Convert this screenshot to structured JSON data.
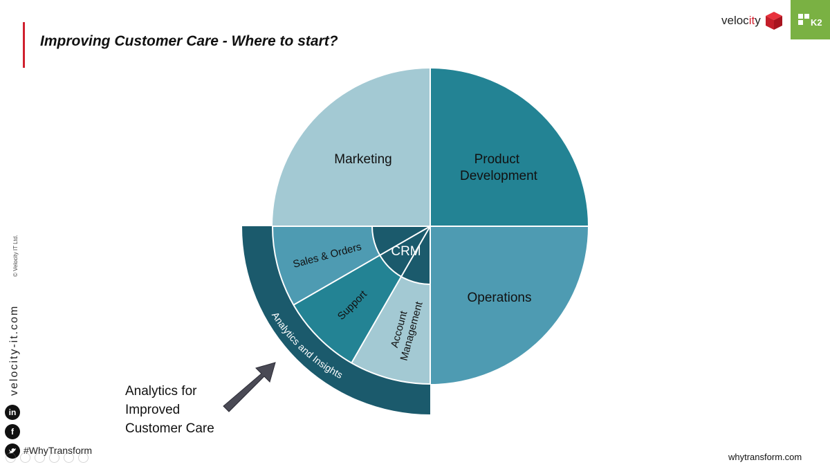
{
  "header": {
    "title": "Improving Customer Care - Where to start?",
    "velocity_logo_text": "velocity",
    "k2_logo_text": "K2"
  },
  "sidebar": {
    "copyright": "© Velocity IT Ltd.",
    "website": "velocity-it.com",
    "hashtag": "#WhyTransform",
    "social_icons": [
      "linkedin-icon",
      "facebook-icon",
      "twitter-icon"
    ]
  },
  "diagram": {
    "quadrants": {
      "marketing": "Marketing",
      "product_development": [
        "Product",
        "Development"
      ],
      "operations": "Operations"
    },
    "inner": {
      "crm": "CRM",
      "sales_orders": "Sales & Orders",
      "support": "Support",
      "account_management": [
        "Account",
        "Management"
      ]
    },
    "outer_ring": "Analytics and Insights",
    "colors": {
      "marketing": "#a3c9d3",
      "product_development": "#238394",
      "operations": "#4e9bb2",
      "outer_ring": "#1b5a6c",
      "crm": "#1b5a6c",
      "sales_orders": "#4e9bb2",
      "support": "#238394",
      "account_management": "#a3c9d3",
      "arrow": "#4a4a55"
    }
  },
  "callout": {
    "lines": [
      "Analytics for",
      "Improved",
      "Customer Care"
    ]
  },
  "footer": {
    "website": "whytransform.com"
  }
}
